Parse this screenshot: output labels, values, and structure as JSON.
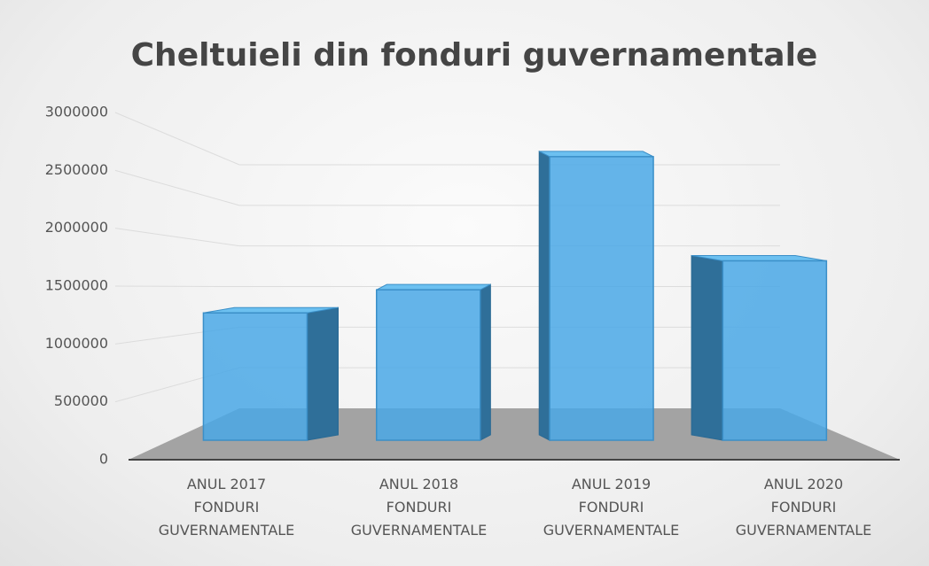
{
  "chart_data": {
    "type": "bar3d",
    "title": "Cheltuieli din fonduri guvernamentale",
    "categories": [
      "ANUL 2017\nFONDURI\nGUVERNAMENTALE",
      "ANUL 2018\nFONDURI\nGUVERNAMENTALE",
      "ANUL 2019\nFONDURI\nGUVERNAMENTALE",
      "ANUL 2020\nFONDURI\nGUVERNAMENTALE"
    ],
    "values": [
      1100000,
      1300000,
      2450000,
      1550000
    ],
    "color": "#4aa8e6",
    "ylim": [
      0,
      3000000
    ],
    "yticks": [
      0,
      500000,
      1000000,
      1500000,
      2000000,
      2500000,
      3000000
    ],
    "grid": true
  }
}
